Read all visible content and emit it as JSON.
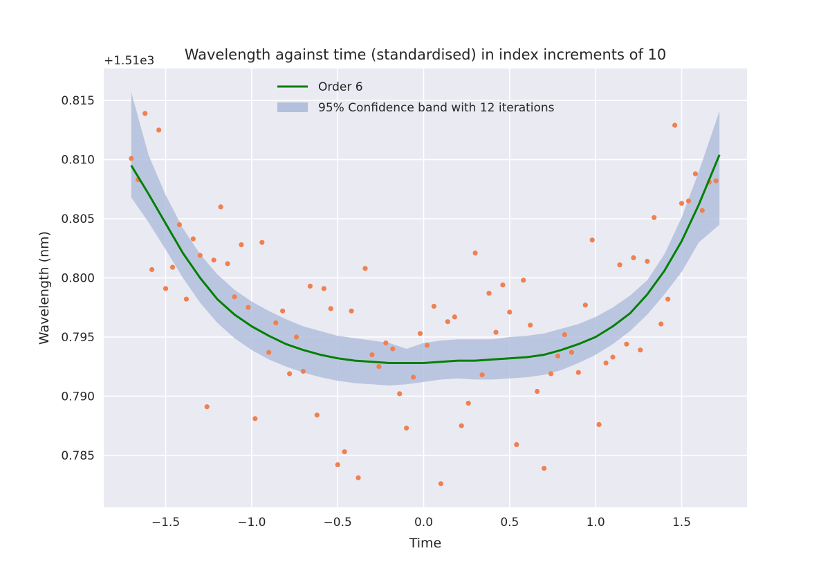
{
  "chart_data": {
    "type": "scatter",
    "title": "Wavelength against time (standardised) in index increments of 10",
    "xlabel": "Time",
    "ylabel": "Wavelength (nm)",
    "y_offset_label": "+1.51e3",
    "y_offset": 1510,
    "xlim": [
      -1.86,
      1.88
    ],
    "ylim": [
      0.7806,
      0.8177
    ],
    "xticks": [
      -1.5,
      -1.0,
      -0.5,
      0.0,
      0.5,
      1.0,
      1.5
    ],
    "xtick_labels": [
      "−1.5",
      "−1.0",
      "−0.5",
      "0.0",
      "0.5",
      "1.0",
      "1.5"
    ],
    "yticks": [
      0.785,
      0.79,
      0.795,
      0.8,
      0.805,
      0.81,
      0.815
    ],
    "ytick_labels": [
      "0.785",
      "0.790",
      "0.795",
      "0.800",
      "0.805",
      "0.810",
      "0.815"
    ],
    "grid": true,
    "legend_placement": "upper-center",
    "colors": {
      "background": "#eaeaf2",
      "grid": "#ffffff",
      "points": "#f08050",
      "fit_line": "#008000",
      "band": "#b2c0dc"
    },
    "series": [
      {
        "name": "Order 6",
        "kind": "line",
        "x": [
          -1.7,
          -1.6,
          -1.5,
          -1.4,
          -1.3,
          -1.2,
          -1.1,
          -1.0,
          -0.9,
          -0.8,
          -0.7,
          -0.6,
          -0.5,
          -0.4,
          -0.3,
          -0.2,
          -0.1,
          0.0,
          0.1,
          0.2,
          0.3,
          0.4,
          0.5,
          0.6,
          0.7,
          0.8,
          0.9,
          1.0,
          1.1,
          1.2,
          1.3,
          1.4,
          1.5,
          1.6,
          1.72
        ],
        "y": [
          0.8095,
          0.8071,
          0.8046,
          0.8021,
          0.8,
          0.7982,
          0.7969,
          0.7959,
          0.7951,
          0.7944,
          0.7939,
          0.7935,
          0.7932,
          0.793,
          0.7929,
          0.7928,
          0.7928,
          0.7928,
          0.7929,
          0.793,
          0.793,
          0.7931,
          0.7932,
          0.7933,
          0.7935,
          0.7939,
          0.7944,
          0.795,
          0.7959,
          0.797,
          0.7986,
          0.8006,
          0.8031,
          0.8062,
          0.8104
        ]
      },
      {
        "name": "95% Confidence band with 12 iterations",
        "kind": "band",
        "x": [
          -1.7,
          -1.6,
          -1.5,
          -1.4,
          -1.3,
          -1.2,
          -1.1,
          -1.0,
          -0.9,
          -0.8,
          -0.7,
          -0.6,
          -0.5,
          -0.4,
          -0.3,
          -0.2,
          -0.1,
          0.0,
          0.1,
          0.2,
          0.3,
          0.4,
          0.5,
          0.6,
          0.7,
          0.8,
          0.9,
          1.0,
          1.1,
          1.2,
          1.3,
          1.4,
          1.5,
          1.6,
          1.72
        ],
        "lower": [
          0.8068,
          0.8047,
          0.8024,
          0.8,
          0.7979,
          0.7962,
          0.7949,
          0.7939,
          0.7931,
          0.7925,
          0.792,
          0.7916,
          0.7913,
          0.7911,
          0.791,
          0.7909,
          0.791,
          0.7912,
          0.7914,
          0.7915,
          0.7914,
          0.7914,
          0.7915,
          0.7916,
          0.7918,
          0.7922,
          0.7928,
          0.7935,
          0.7944,
          0.7955,
          0.7969,
          0.7986,
          0.8005,
          0.803,
          0.8045
        ],
        "upper": [
          0.8157,
          0.8104,
          0.807,
          0.8042,
          0.802,
          0.8003,
          0.799,
          0.798,
          0.7972,
          0.7965,
          0.7959,
          0.7955,
          0.7951,
          0.7949,
          0.7947,
          0.7945,
          0.794,
          0.7945,
          0.7947,
          0.7948,
          0.7948,
          0.7948,
          0.795,
          0.7951,
          0.7953,
          0.7957,
          0.7961,
          0.7967,
          0.7975,
          0.7985,
          0.7998,
          0.802,
          0.8051,
          0.809,
          0.8141
        ]
      },
      {
        "name": "",
        "kind": "points",
        "x": [
          -1.7,
          -1.66,
          -1.62,
          -1.58,
          -1.54,
          -1.5,
          -1.46,
          -1.42,
          -1.38,
          -1.34,
          -1.3,
          -1.26,
          -1.22,
          -1.18,
          -1.14,
          -1.1,
          -1.06,
          -1.02,
          -0.98,
          -0.94,
          -0.9,
          -0.86,
          -0.82,
          -0.78,
          -0.74,
          -0.7,
          -0.66,
          -0.62,
          -0.58,
          -0.54,
          -0.5,
          -0.46,
          -0.42,
          -0.38,
          -0.34,
          -0.3,
          -0.26,
          -0.22,
          -0.18,
          -0.14,
          -0.1,
          -0.06,
          -0.02,
          0.02,
          0.06,
          0.1,
          0.14,
          0.18,
          0.22,
          0.26,
          0.3,
          0.34,
          0.38,
          0.42,
          0.46,
          0.5,
          0.54,
          0.58,
          0.62,
          0.66,
          0.7,
          0.74,
          0.78,
          0.82,
          0.86,
          0.9,
          0.94,
          0.98,
          1.02,
          1.06,
          1.1,
          1.14,
          1.18,
          1.22,
          1.26,
          1.3,
          1.34,
          1.38,
          1.42,
          1.46,
          1.5,
          1.54,
          1.58,
          1.62,
          1.66,
          1.7
        ],
        "y": [
          0.8101,
          0.8083,
          0.8139,
          0.8007,
          0.8125,
          0.7991,
          0.8009,
          0.8045,
          0.7982,
          0.8033,
          0.8019,
          0.7891,
          0.8015,
          0.806,
          0.8012,
          0.7984,
          0.8028,
          0.7975,
          0.7881,
          0.803,
          0.7937,
          0.7962,
          0.7972,
          0.7919,
          0.795,
          0.7921,
          0.7993,
          0.7884,
          0.7991,
          0.7974,
          0.7842,
          0.7853,
          0.7972,
          0.7831,
          0.8008,
          0.7935,
          0.7925,
          0.7945,
          0.794,
          0.7902,
          0.7873,
          0.7916,
          0.7953,
          0.7943,
          0.7976,
          0.7826,
          0.7963,
          0.7967,
          0.7875,
          0.7894,
          0.8021,
          0.7918,
          0.7987,
          0.7954,
          0.7994,
          0.7971,
          0.7859,
          0.7998,
          0.796,
          0.7904,
          0.7839,
          0.7919,
          0.7934,
          0.7952,
          0.7937,
          0.792,
          0.7977,
          0.8032,
          0.7876,
          0.7928,
          0.7933,
          0.8011,
          0.7944,
          0.8017,
          0.7939,
          0.8014,
          0.8051,
          0.7961,
          0.7982,
          0.8129,
          0.8063,
          0.8065,
          0.8088,
          0.8057,
          0.8081,
          0.8082
        ]
      }
    ]
  }
}
